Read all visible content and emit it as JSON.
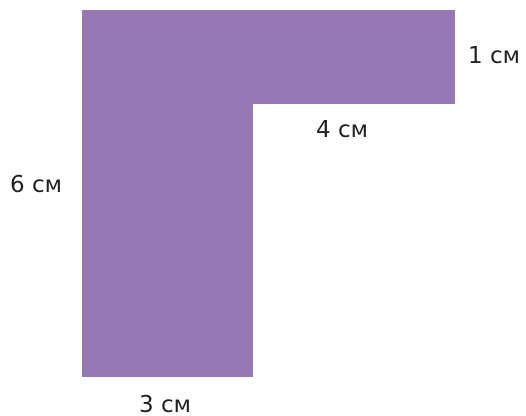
{
  "shape": {
    "kind": "L-shape",
    "fill_color": "#9477b3"
  },
  "labels": {
    "top_right_side": "1 см",
    "inner_side": "4 см",
    "left_side": "6 см",
    "bottom_side": "3 см"
  },
  "text_color": "#231f20"
}
